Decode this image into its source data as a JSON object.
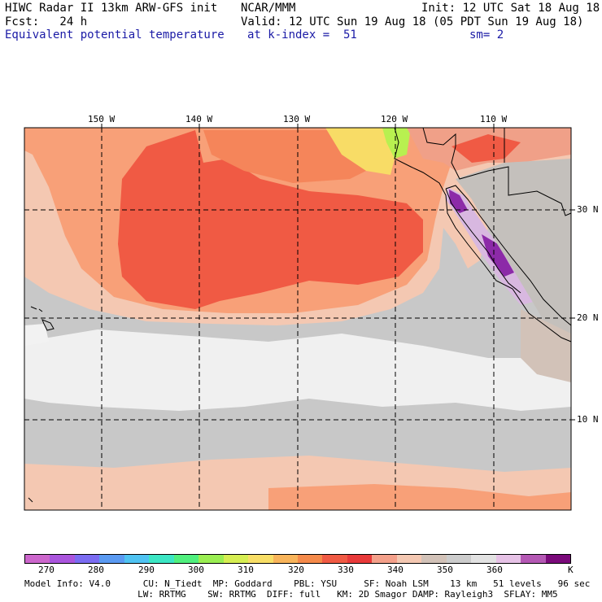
{
  "header": {
    "title": "HIWC Radar II 13km ARW-GFS init",
    "org": "NCAR/MMM",
    "init": "Init: 12 UTC Sat 18 Aug 18",
    "fcst": "Fcst:   24 h",
    "valid": "Valid: 12 UTC Sun 19 Aug 18 (05 PDT Sun 19 Aug 18)",
    "field": "Equivalent potential temperature",
    "level": "at k-index =  51",
    "smooth": "sm= 2"
  },
  "map": {
    "lon_labels": [
      "150 W",
      "140 W",
      "130 W",
      "120 W",
      "110 W"
    ],
    "lat_labels": [
      "30 N",
      "20 N",
      "10 N"
    ],
    "field_colors": {
      "background_cool": "#c8c8c8",
      "white_low": "#f2f2f2",
      "band_340": "#f4c8b2",
      "band_350": "#f8a078",
      "band_355": "#f05a44",
      "hot_yellow": "#f8dc66",
      "hot_green": "#b8f050",
      "purple": "#8c2aa8"
    }
  },
  "legend": {
    "colors": [
      "#cc66cc",
      "#aa55dd",
      "#7b6cf2",
      "#5a9af2",
      "#4fc3f2",
      "#3ce6c4",
      "#50f07e",
      "#9aee52",
      "#d6ee52",
      "#f8de66",
      "#f8b45a",
      "#f58a4a",
      "#f05a44",
      "#e83a3a",
      "#f4a08a",
      "#f4c8b2",
      "#d2c2b8",
      "#cccccc",
      "#e2e2e2",
      "#e6c2e6",
      "#b458b4",
      "#7a0a7a"
    ],
    "ticks": [
      "270",
      "280",
      "290",
      "300",
      "310",
      "320",
      "330",
      "340",
      "350",
      "360",
      "K"
    ]
  },
  "footer": {
    "line1": "Model Info: V4.0      CU: N_Tiedt  MP: Goddard    PBL: YSU     SF: Noah LSM    13 km   51 levels   96 sec",
    "line2": "                     LW: RRTMG    SW: RRTMG  DIFF: full   KM: 2D Smagor DAMP: Rayleigh3  SFLAY: MM5"
  }
}
